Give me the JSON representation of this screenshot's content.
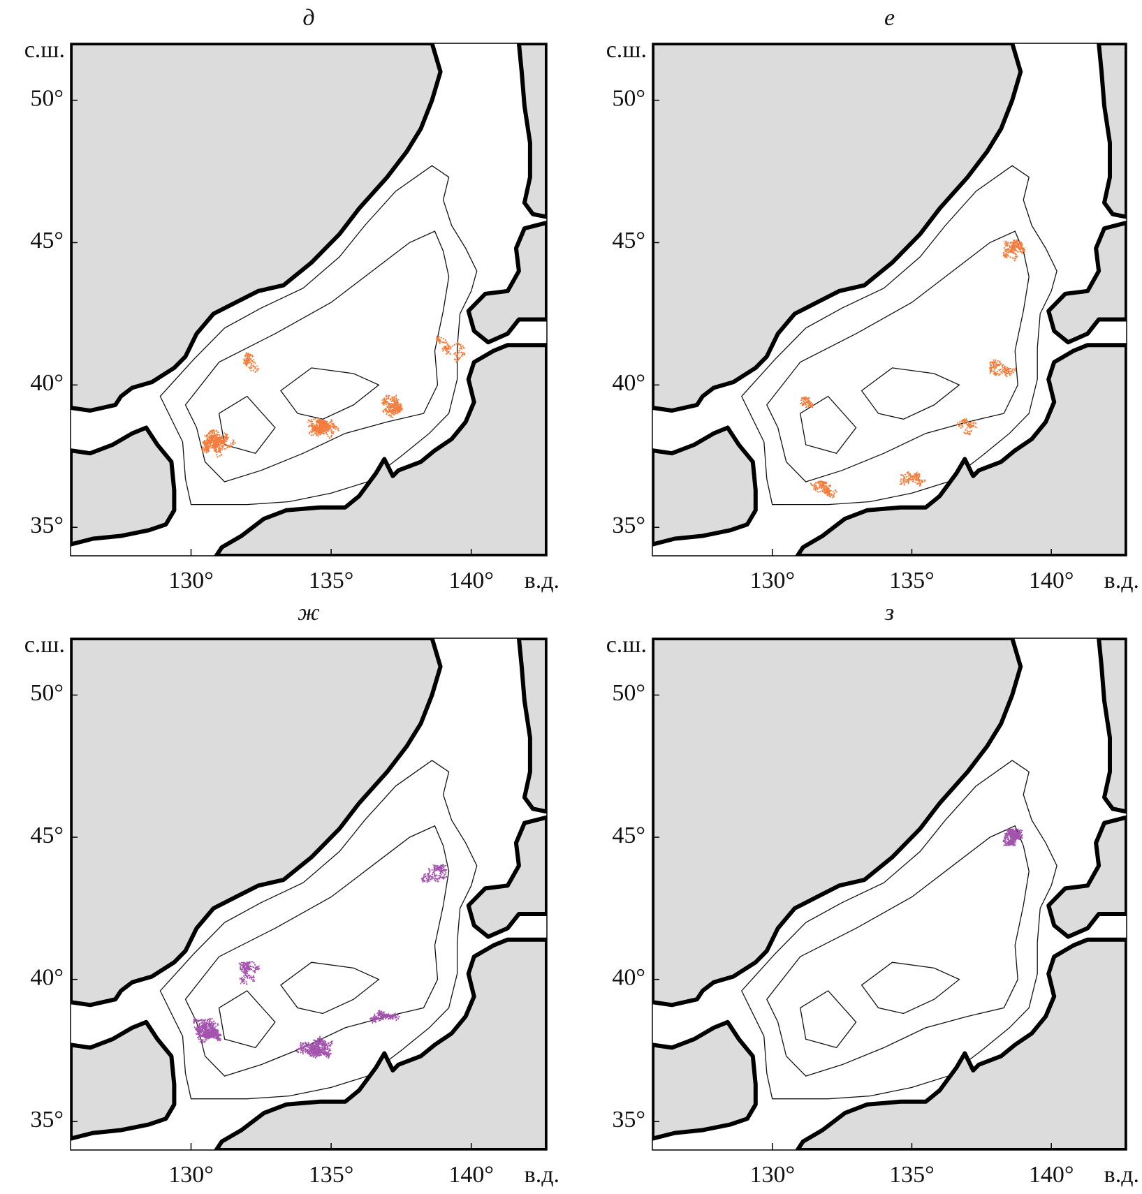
{
  "xlim": [
    125.7,
    142.7
  ],
  "ylim": [
    34,
    52
  ],
  "xticks": [
    {
      "value": 130,
      "label": "130°"
    },
    {
      "value": 135,
      "label": "135°"
    },
    {
      "value": 140,
      "label": "140°"
    }
  ],
  "yticks": [
    {
      "value": 50,
      "label": "50°"
    },
    {
      "value": 45,
      "label": "45°"
    },
    {
      "value": 40,
      "label": "40°"
    },
    {
      "value": 35,
      "label": "35°"
    }
  ],
  "ylabel": "с.ш.",
  "xlabel": "в.д.",
  "land_color": "#dcdcdc",
  "panels": [
    {
      "title": "д",
      "color": "#f47c3c"
    },
    {
      "title": "е",
      "color": "#f47c3c"
    },
    {
      "title": "ж",
      "color": "#a352ad"
    },
    {
      "title": "з",
      "color": "#a352ad"
    }
  ]
}
